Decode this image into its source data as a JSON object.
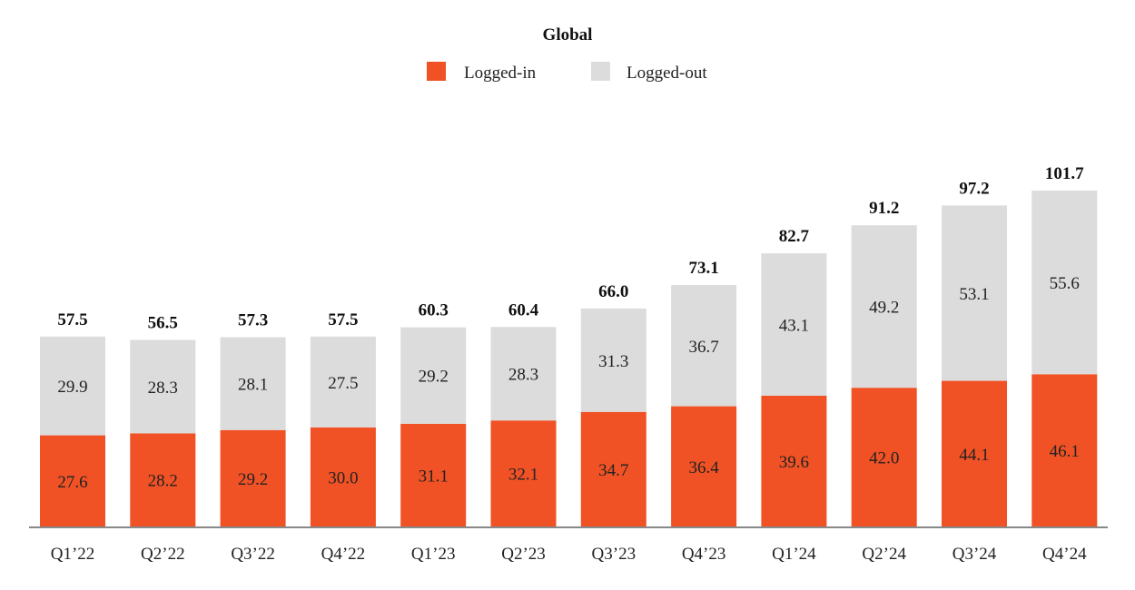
{
  "colors": {
    "logged_in": "#f05225",
    "logged_out": "#dcdcdd",
    "axis": "#888888"
  },
  "chart_data": {
    "type": "bar",
    "stacked": true,
    "title": "Global",
    "xlabel": "",
    "ylabel": "",
    "ylim": [
      0,
      101.7
    ],
    "grid": false,
    "legend_position": "top-center",
    "categories": [
      "Q1’22",
      "Q2’22",
      "Q3’22",
      "Q4’22",
      "Q1’23",
      "Q2’23",
      "Q3’23",
      "Q4’23",
      "Q1’24",
      "Q2’24",
      "Q3’24",
      "Q4’24"
    ],
    "series": [
      {
        "name": "Logged-in",
        "color": "#f05225",
        "values": [
          27.6,
          28.2,
          29.2,
          30.0,
          31.1,
          32.1,
          34.7,
          36.4,
          39.6,
          42.0,
          44.1,
          46.1
        ],
        "labels": [
          "27.6",
          "28.2",
          "29.2",
          "30.0",
          "31.1",
          "32.1",
          "34.7",
          "36.4",
          "39.6",
          "42.0",
          "44.1",
          "46.1"
        ]
      },
      {
        "name": "Logged-out",
        "color": "#dcdcdd",
        "values": [
          29.9,
          28.3,
          28.1,
          27.5,
          29.2,
          28.3,
          31.3,
          36.7,
          43.1,
          49.2,
          53.1,
          55.6
        ],
        "labels": [
          "29.9",
          "28.3",
          "28.1",
          "27.5",
          "29.2",
          "28.3",
          "31.3",
          "36.7",
          "43.1",
          "49.2",
          "53.1",
          "55.6"
        ]
      }
    ],
    "totals": [
      57.5,
      56.5,
      57.3,
      57.5,
      60.3,
      60.4,
      66.0,
      73.1,
      82.7,
      91.2,
      97.2,
      101.7
    ],
    "total_labels": [
      "57.5",
      "56.5",
      "57.3",
      "57.5",
      "60.3",
      "60.4",
      "66.0",
      "73.1",
      "82.7",
      "91.2",
      "97.2",
      "101.7"
    ]
  }
}
